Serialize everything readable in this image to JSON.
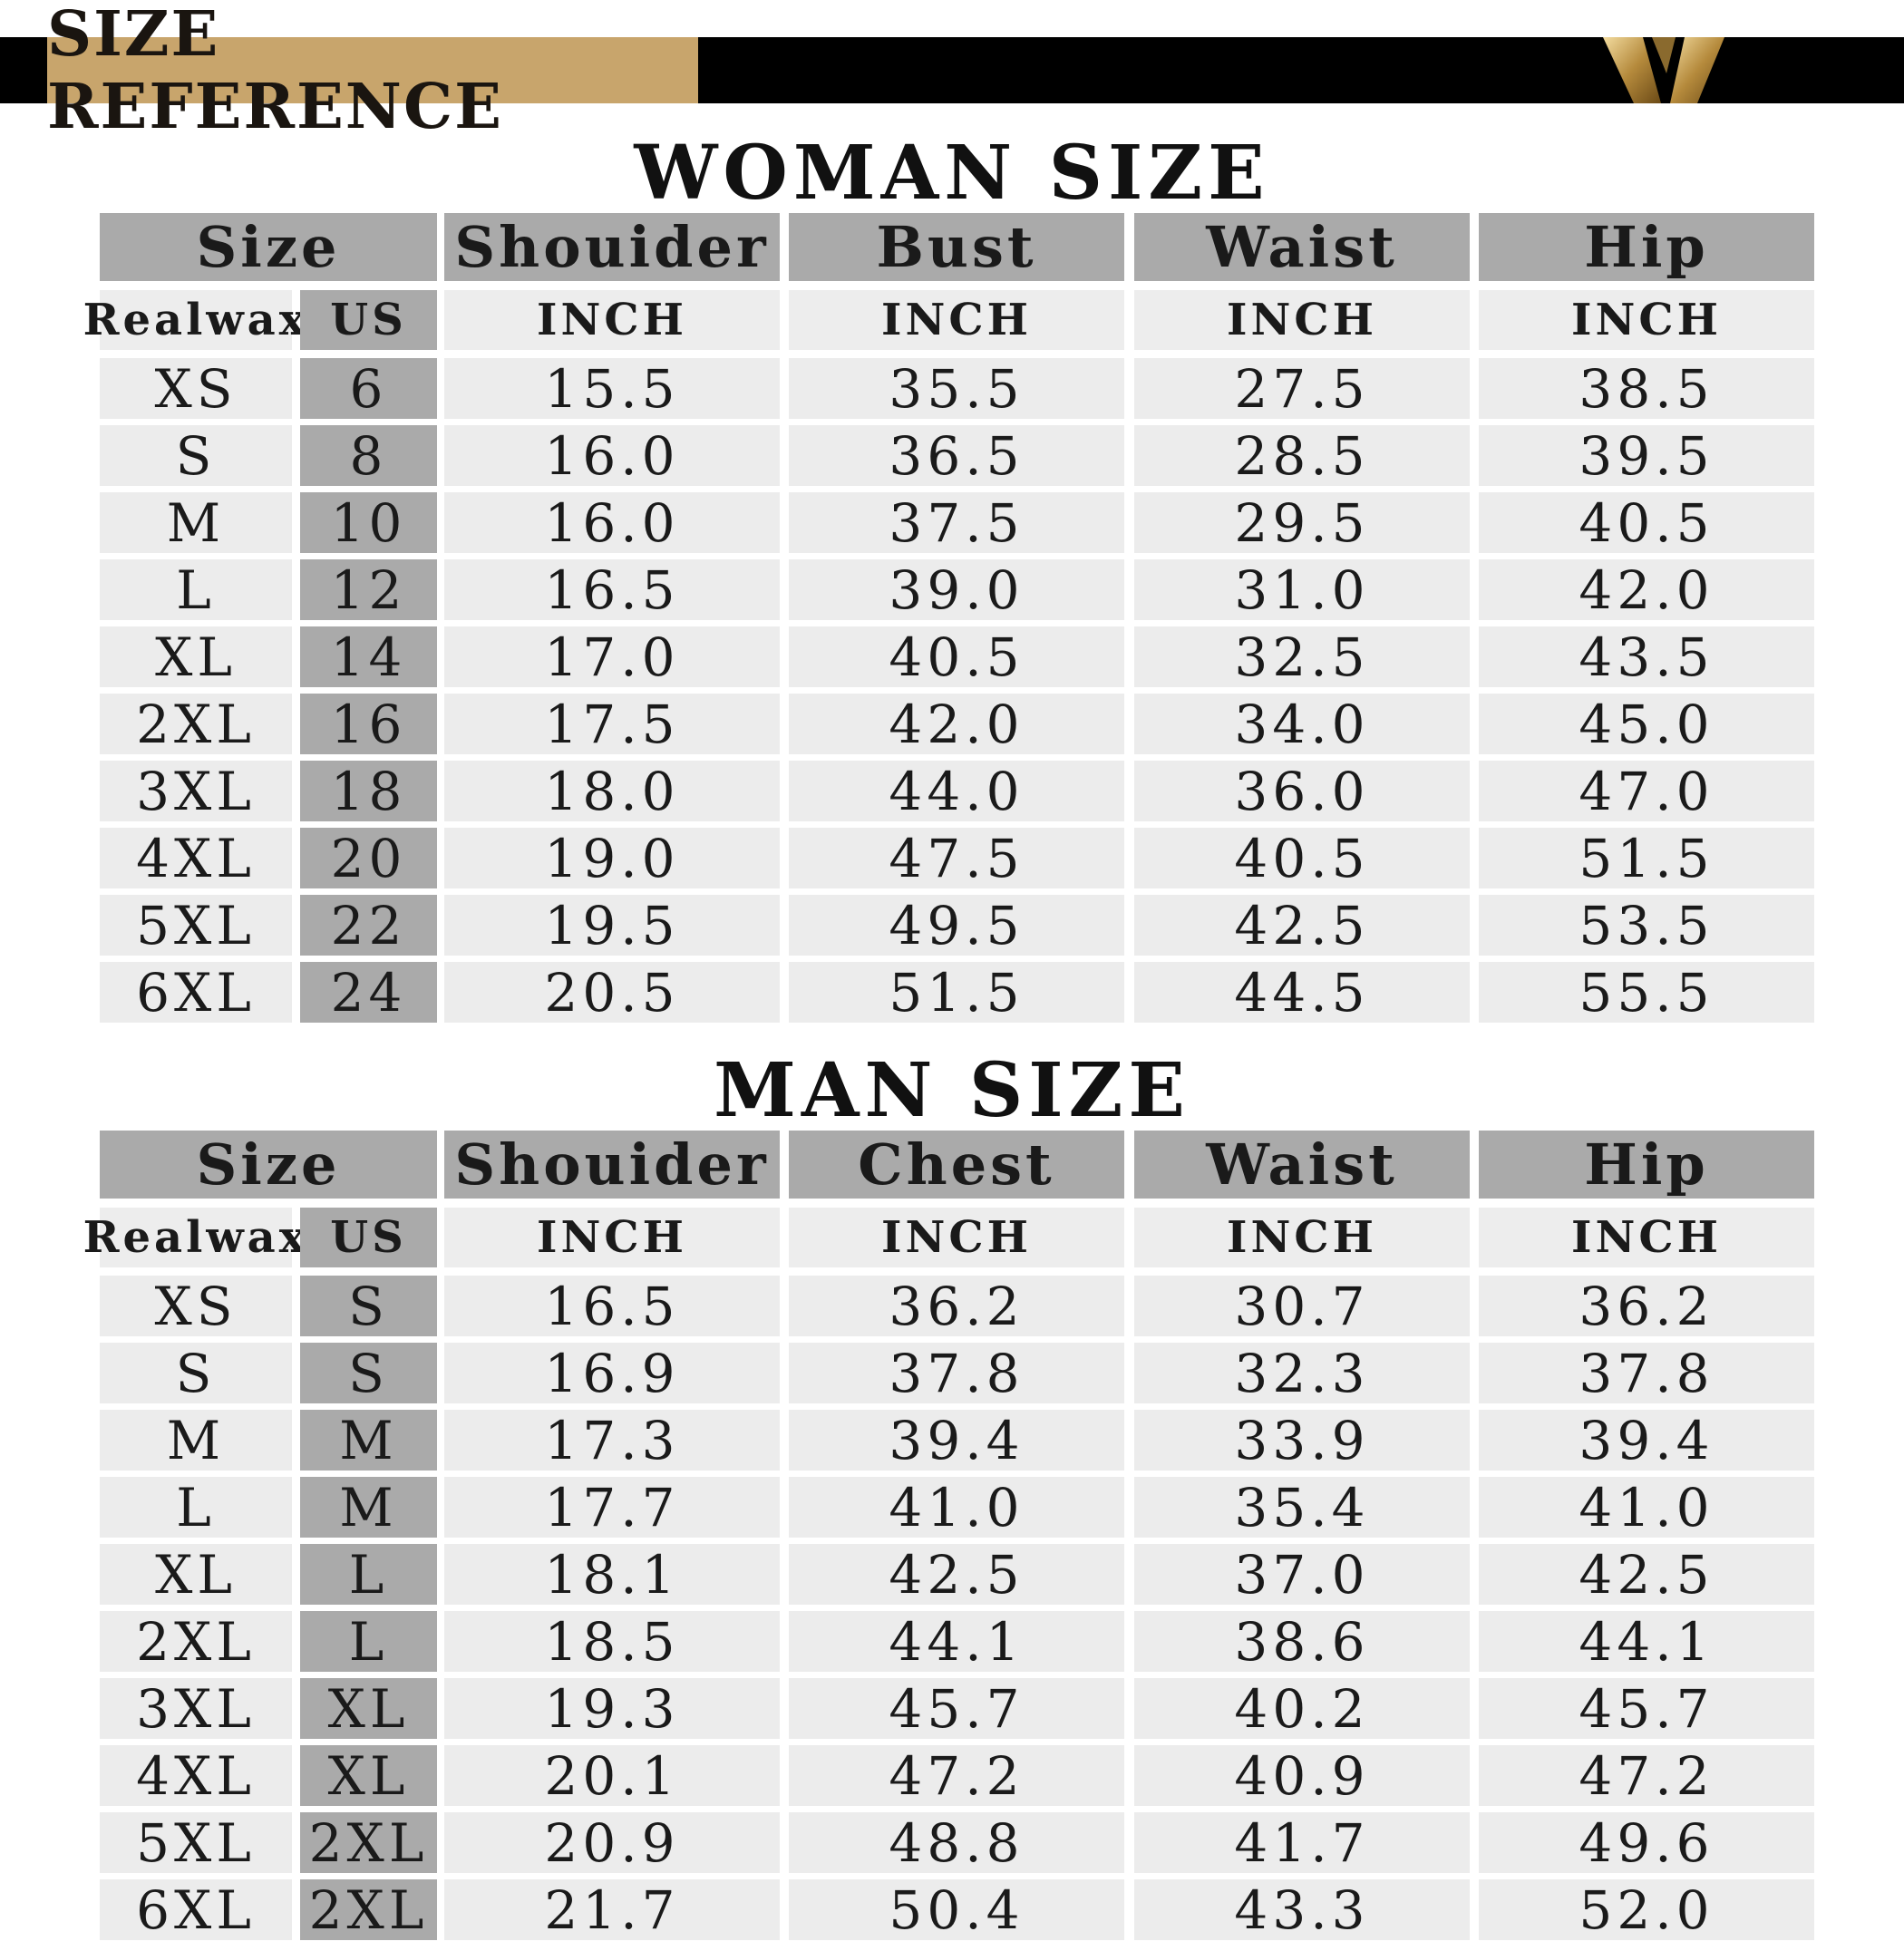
{
  "banner": {
    "title": "SIZE REFERENCE",
    "accent_color": "#c8a56c",
    "bar_color": "#000000",
    "logo_icon": "gold-w-logo-icon"
  },
  "tables": [
    {
      "title": "WOMAN SIZE",
      "headers": [
        "Size",
        "Shouider",
        "Bust",
        "Waist",
        "Hip"
      ],
      "subheaders": [
        "Realwax",
        "US",
        "INCH",
        "INCH",
        "INCH",
        "INCH"
      ],
      "rows": [
        [
          "XS",
          "6",
          "15.5",
          "35.5",
          "27.5",
          "38.5"
        ],
        [
          "S",
          "8",
          "16.0",
          "36.5",
          "28.5",
          "39.5"
        ],
        [
          "M",
          "10",
          "16.0",
          "37.5",
          "29.5",
          "40.5"
        ],
        [
          "L",
          "12",
          "16.5",
          "39.0",
          "31.0",
          "42.0"
        ],
        [
          "XL",
          "14",
          "17.0",
          "40.5",
          "32.5",
          "43.5"
        ],
        [
          "2XL",
          "16",
          "17.5",
          "42.0",
          "34.0",
          "45.0"
        ],
        [
          "3XL",
          "18",
          "18.0",
          "44.0",
          "36.0",
          "47.0"
        ],
        [
          "4XL",
          "20",
          "19.0",
          "47.5",
          "40.5",
          "51.5"
        ],
        [
          "5XL",
          "22",
          "19.5",
          "49.5",
          "42.5",
          "53.5"
        ],
        [
          "6XL",
          "24",
          "20.5",
          "51.5",
          "44.5",
          "55.5"
        ]
      ]
    },
    {
      "title": "MAN SIZE",
      "headers": [
        "Size",
        "Shouider",
        "Chest",
        "Waist",
        "Hip"
      ],
      "subheaders": [
        "Realwax",
        "US",
        "INCH",
        "INCH",
        "INCH",
        "INCH"
      ],
      "rows": [
        [
          "XS",
          "S",
          "16.5",
          "36.2",
          "30.7",
          "36.2"
        ],
        [
          "S",
          "S",
          "16.9",
          "37.8",
          "32.3",
          "37.8"
        ],
        [
          "M",
          "M",
          "17.3",
          "39.4",
          "33.9",
          "39.4"
        ],
        [
          "L",
          "M",
          "17.7",
          "41.0",
          "35.4",
          "41.0"
        ],
        [
          "XL",
          "L",
          "18.1",
          "42.5",
          "37.0",
          "42.5"
        ],
        [
          "2XL",
          "L",
          "18.5",
          "44.1",
          "38.6",
          "44.1"
        ],
        [
          "3XL",
          "XL",
          "19.3",
          "45.7",
          "40.2",
          "45.7"
        ],
        [
          "4XL",
          "XL",
          "20.1",
          "47.2",
          "40.9",
          "47.2"
        ],
        [
          "5XL",
          "2XL",
          "20.9",
          "48.8",
          "41.7",
          "49.6"
        ],
        [
          "6XL",
          "2XL",
          "21.7",
          "50.4",
          "43.3",
          "52.0"
        ]
      ]
    }
  ]
}
